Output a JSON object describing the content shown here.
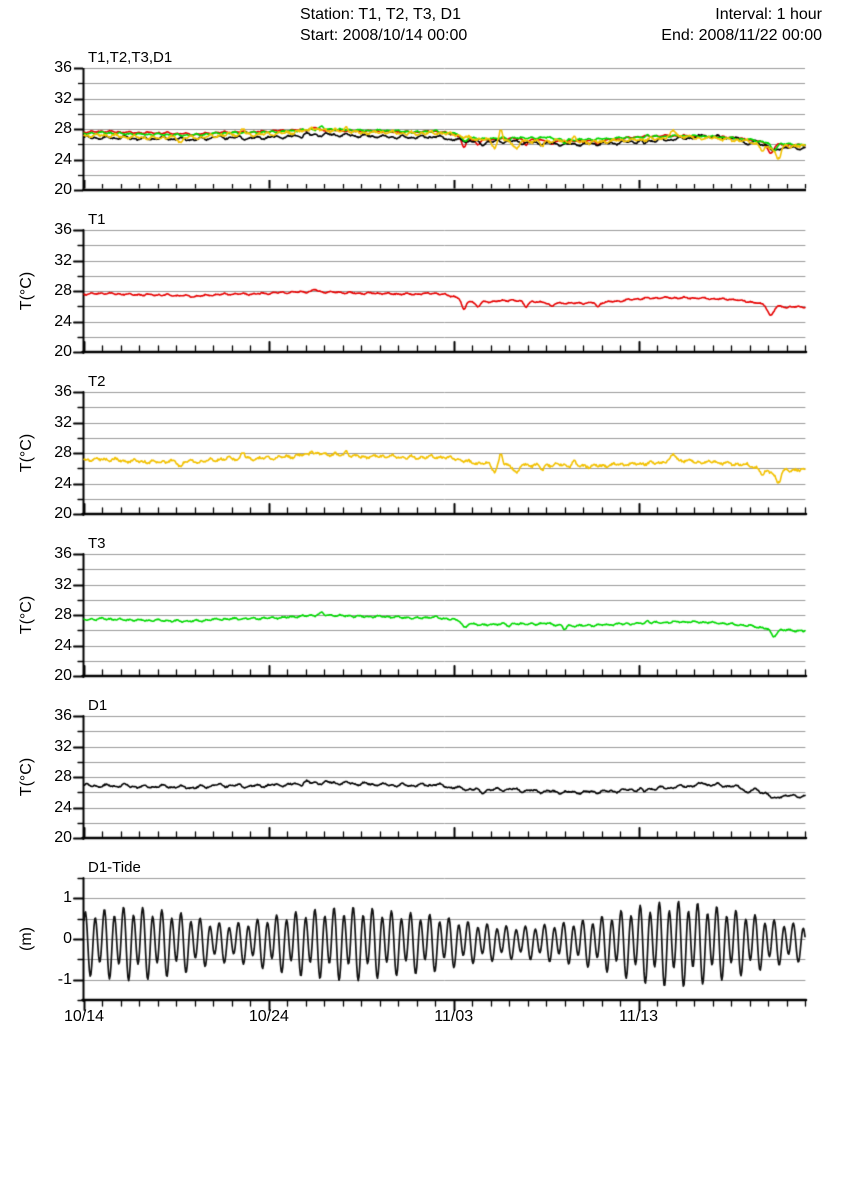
{
  "header": {
    "station": "Station: T1, T2, T3, D1",
    "interval": "Interval: 1 hour",
    "start": "Start: 2008/10/14 00:00",
    "end": "End: 2008/11/22 00:00"
  },
  "colors": {
    "T1": "#e60000",
    "T2": "#f2c100",
    "T3": "#00d900",
    "D1": "#000000",
    "tide": "#111111",
    "grid": "#9a9a9a",
    "axis": "#000000"
  },
  "chart_data": {
    "type": "line",
    "x_start": "2008/10/14 00:00",
    "x_end": "2008/11/22 00:00",
    "sample_interval": "1 hour",
    "days_total": 39,
    "xticks": [
      {
        "day": 0,
        "label": "10/14"
      },
      {
        "day": 10,
        "label": "10/24"
      },
      {
        "day": 20,
        "label": "11/03"
      },
      {
        "day": 30,
        "label": "11/13"
      }
    ],
    "series": {
      "T1": {
        "label": "T1",
        "color": "#e60000",
        "units": "degC",
        "daily": [
          27.6,
          27.7,
          27.6,
          27.5,
          27.5,
          27.4,
          27.3,
          27.5,
          27.6,
          27.6,
          27.7,
          27.8,
          27.9,
          27.9,
          27.8,
          27.7,
          27.7,
          27.6,
          27.6,
          27.7,
          27.3,
          26.7,
          26.6,
          26.8,
          26.6,
          26.5,
          26.4,
          26.4,
          26.5,
          26.7,
          27.0,
          27.1,
          27.1,
          27.1,
          27.0,
          26.9,
          26.6,
          26.1,
          25.9,
          25.9
        ],
        "hourly_variability": {
          "w1": 0.05,
          "w2": 0.07,
          "jitter": 0.12,
          "seed": 11
        },
        "dips": [
          [
            20.55,
            1.5,
            4
          ],
          [
            21.3,
            0.7,
            5
          ],
          [
            23.9,
            0.6,
            4
          ],
          [
            25.3,
            0.5,
            4
          ],
          [
            27.8,
            0.6,
            3
          ],
          [
            37.15,
            1.3,
            5
          ]
        ],
        "spikes": [
          [
            12.5,
            0.3,
            4
          ]
        ]
      },
      "T2": {
        "label": "T2",
        "color": "#f2c100",
        "units": "degC",
        "daily": [
          27.1,
          27.2,
          27.0,
          26.9,
          26.8,
          26.9,
          26.8,
          27.1,
          27.3,
          27.2,
          27.4,
          27.5,
          27.8,
          27.9,
          27.7,
          27.5,
          27.6,
          27.5,
          27.4,
          27.5,
          27.3,
          26.7,
          26.6,
          26.3,
          26.4,
          26.5,
          26.4,
          26.3,
          26.3,
          26.5,
          26.6,
          26.7,
          27.1,
          26.9,
          26.7,
          26.6,
          26.4,
          25.6,
          25.8,
          25.7
        ],
        "hourly_variability": {
          "w1": 0.1,
          "w2": 0.12,
          "jitter": 0.28,
          "seed": 22
        },
        "dips": [
          [
            5.2,
            0.6,
            4
          ],
          [
            22.2,
            0.9,
            4
          ],
          [
            23.4,
            1.0,
            4
          ],
          [
            24.8,
            0.8,
            4
          ],
          [
            36.7,
            0.7,
            4
          ],
          [
            37.55,
            1.6,
            5
          ]
        ],
        "spikes": [
          [
            8.6,
            0.9,
            3
          ],
          [
            12.3,
            0.5,
            3
          ],
          [
            14.2,
            0.7,
            3
          ],
          [
            22.55,
            1.5,
            3
          ],
          [
            26.5,
            0.6,
            3
          ],
          [
            31.9,
            0.8,
            4
          ],
          [
            34.1,
            0.4,
            3
          ]
        ]
      },
      "T3": {
        "label": "T3",
        "color": "#00d900",
        "units": "degC",
        "daily": [
          27.4,
          27.5,
          27.4,
          27.3,
          27.3,
          27.2,
          27.2,
          27.4,
          27.5,
          27.5,
          27.6,
          27.7,
          27.9,
          28.0,
          27.9,
          27.8,
          27.8,
          27.7,
          27.6,
          27.7,
          27.4,
          26.8,
          26.7,
          27.0,
          26.8,
          26.9,
          26.6,
          26.6,
          26.7,
          26.8,
          26.9,
          27.0,
          27.1,
          27.1,
          27.0,
          26.8,
          26.6,
          26.2,
          26.0,
          25.9
        ],
        "hourly_variability": {
          "w1": 0.05,
          "w2": 0.08,
          "jitter": 0.14,
          "seed": 33
        },
        "dips": [
          [
            20.6,
            0.7,
            4
          ],
          [
            23.0,
            0.5,
            4
          ],
          [
            26.0,
            0.5,
            3
          ],
          [
            37.3,
            0.9,
            5
          ]
        ],
        "spikes": [
          [
            12.8,
            0.3,
            4
          ],
          [
            30.5,
            0.3,
            3
          ]
        ]
      },
      "D1": {
        "label": "D1",
        "color": "#000000",
        "units": "degC",
        "daily": [
          26.9,
          26.8,
          26.9,
          26.7,
          26.8,
          26.7,
          26.6,
          26.9,
          26.9,
          26.8,
          26.9,
          27.0,
          27.1,
          27.3,
          27.2,
          27.1,
          27.0,
          26.9,
          26.9,
          27.0,
          26.6,
          26.4,
          26.3,
          26.4,
          26.2,
          26.1,
          26.0,
          26.0,
          26.1,
          26.2,
          26.4,
          26.5,
          26.7,
          26.9,
          27.0,
          26.8,
          26.4,
          25.9,
          25.5,
          25.5
        ],
        "hourly_variability": {
          "w1": 0.14,
          "w2": 0.1,
          "jitter": 0.16,
          "seed": 44
        },
        "dips": [
          [
            21.5,
            0.4,
            4
          ],
          [
            30.3,
            0.4,
            3
          ],
          [
            35.9,
            0.5,
            4
          ],
          [
            37.3,
            0.7,
            6
          ]
        ],
        "spikes": [
          [
            12.0,
            0.3,
            4
          ],
          [
            33.5,
            0.3,
            4
          ]
        ]
      },
      "TIDE": {
        "label": "D1-Tide",
        "color": "#111111",
        "units": "m",
        "kind": "tide",
        "amplitude_daily": [
          0.65,
          0.7,
          0.75,
          0.75,
          0.7,
          0.65,
          0.55,
          0.42,
          0.4,
          0.45,
          0.55,
          0.62,
          0.68,
          0.72,
          0.75,
          0.75,
          0.7,
          0.65,
          0.62,
          0.58,
          0.5,
          0.42,
          0.38,
          0.34,
          0.34,
          0.38,
          0.42,
          0.47,
          0.55,
          0.67,
          0.78,
          0.85,
          0.88,
          0.85,
          0.78,
          0.7,
          0.62,
          0.5,
          0.42,
          0.38
        ],
        "semidiurnal_period_days": 0.51753,
        "diurnal_period_days": 1.03506,
        "diurnal_fraction": 0.3,
        "mean_offset": -0.07
      }
    },
    "panels": [
      {
        "id": "combined",
        "title": "T1,T2,T3,D1",
        "ylabel": "",
        "ylim": [
          20,
          36
        ],
        "yticks": [
          20,
          24,
          28,
          32,
          36
        ],
        "grid_step": 2,
        "series": [
          "T1",
          "D1",
          "T3",
          "T2"
        ]
      },
      {
        "id": "t1",
        "title": "T1",
        "ylabel": "T(°C)",
        "ylim": [
          20,
          36
        ],
        "yticks": [
          20,
          24,
          28,
          32,
          36
        ],
        "grid_step": 2,
        "series": [
          "T1"
        ]
      },
      {
        "id": "t2",
        "title": "T2",
        "ylabel": "T(°C)",
        "ylim": [
          20,
          36
        ],
        "yticks": [
          20,
          24,
          28,
          32,
          36
        ],
        "grid_step": 2,
        "series": [
          "T2"
        ]
      },
      {
        "id": "t3",
        "title": "T3",
        "ylabel": "T(°C)",
        "ylim": [
          20,
          36
        ],
        "yticks": [
          20,
          24,
          28,
          32,
          36
        ],
        "grid_step": 2,
        "series": [
          "T3"
        ]
      },
      {
        "id": "d1",
        "title": "D1",
        "ylabel": "T(°C)",
        "ylim": [
          20,
          36
        ],
        "yticks": [
          20,
          24,
          28,
          32,
          36
        ],
        "grid_step": 2,
        "series": [
          "D1"
        ]
      },
      {
        "id": "tide",
        "title": "D1-Tide",
        "ylabel": "(m)",
        "ylim": [
          -1.5,
          1.5
        ],
        "yticks": [
          -1,
          0,
          1
        ],
        "grid_step": 0.5,
        "series": [
          "TIDE"
        ]
      }
    ]
  }
}
